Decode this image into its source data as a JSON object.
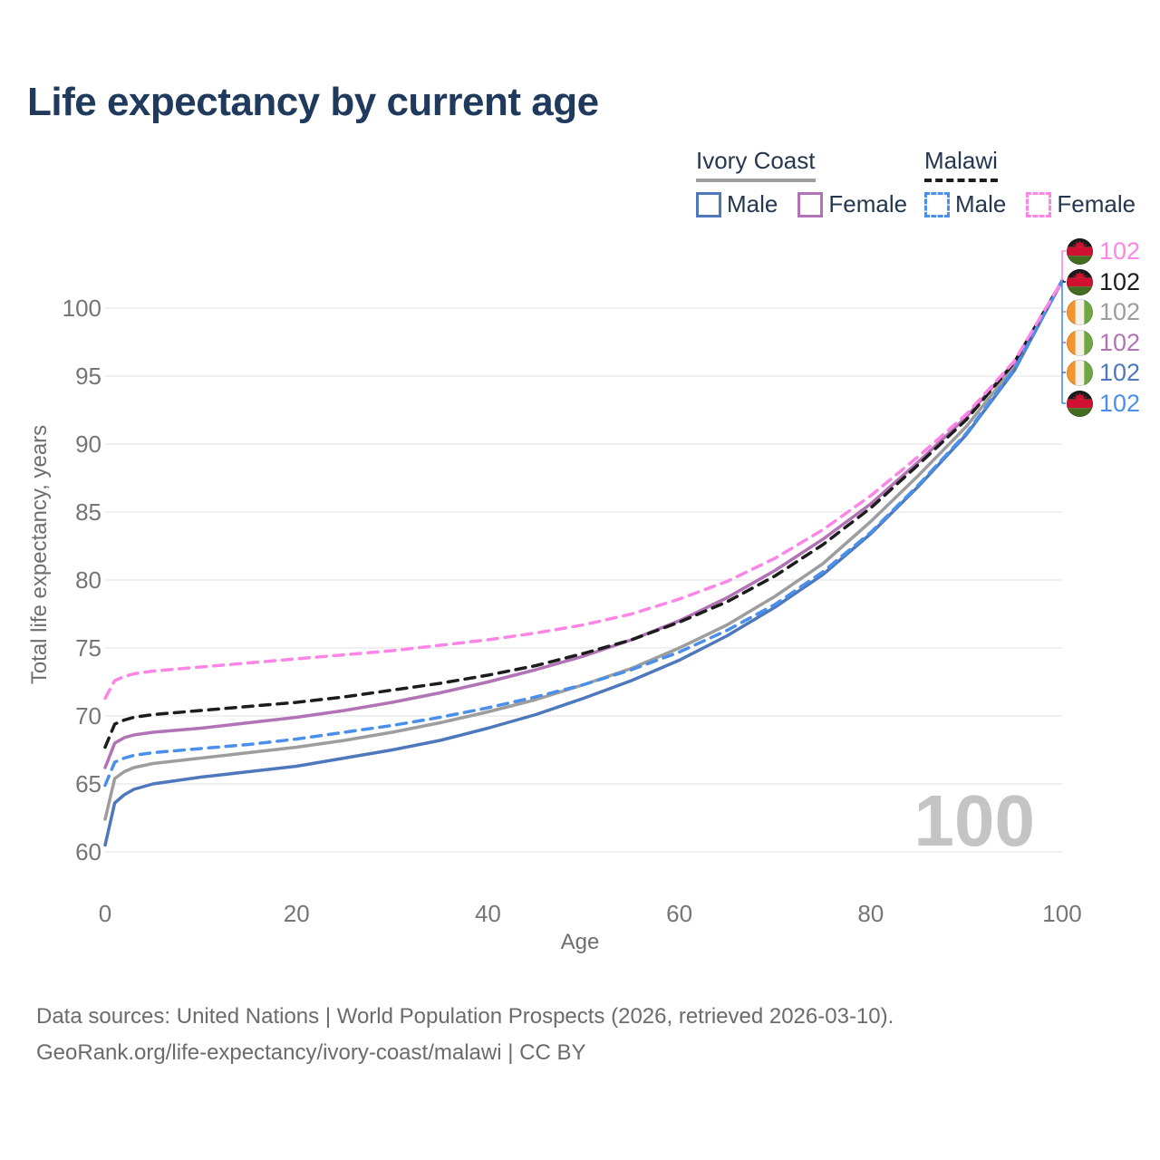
{
  "header": {
    "title": "Life expectancy by current age"
  },
  "legend": {
    "groups": [
      {
        "label": "Ivory Coast",
        "line_style": "solid",
        "underline_color": "#9d9d9d",
        "items": [
          {
            "label": "Male",
            "color": "#4d78bb",
            "dashed": false
          },
          {
            "label": "Female",
            "color": "#b172b6",
            "dashed": false
          }
        ]
      },
      {
        "label": "Malawi",
        "line_style": "dashed",
        "underline_color": "#1c1c1c",
        "items": [
          {
            "label": "Male",
            "color": "#4a8fe9",
            "dashed": true
          },
          {
            "label": "Female",
            "color": "#fc85e5",
            "dashed": true
          }
        ]
      }
    ]
  },
  "chart_data": {
    "type": "line",
    "title": "Life expectancy by current age",
    "xlabel": "Age",
    "ylabel": "Total life expectancy, years",
    "x_ticks": [
      0,
      20,
      40,
      60,
      80,
      100
    ],
    "y_ticks": [
      60,
      65,
      70,
      75,
      80,
      85,
      90,
      95,
      100
    ],
    "xlim": [
      0,
      100
    ],
    "ylim": [
      60,
      102
    ],
    "grid": "horizontal",
    "legend_position": "top-right",
    "watermark": "100",
    "ages": [
      0,
      1,
      2,
      3,
      5,
      10,
      15,
      20,
      25,
      30,
      35,
      40,
      45,
      50,
      55,
      60,
      65,
      70,
      75,
      80,
      85,
      90,
      95,
      100
    ],
    "series": [
      {
        "name": "Ivory Coast — Both sexes",
        "country": "Ivory Coast",
        "sex": "both",
        "color": "#9d9d9d",
        "dashed": false,
        "values": [
          62.4,
          65.4,
          65.9,
          66.2,
          66.5,
          66.9,
          67.3,
          67.7,
          68.2,
          68.8,
          69.5,
          70.3,
          71.2,
          72.3,
          73.5,
          75.0,
          76.7,
          78.8,
          81.2,
          84.3,
          87.7,
          91.3,
          95.7,
          102
        ]
      },
      {
        "name": "Ivory Coast — Female",
        "country": "Ivory Coast",
        "sex": "female",
        "color": "#b172b6",
        "dashed": false,
        "values": [
          66.2,
          68.0,
          68.4,
          68.6,
          68.8,
          69.1,
          69.5,
          69.9,
          70.4,
          71.0,
          71.7,
          72.5,
          73.4,
          74.4,
          75.6,
          77.0,
          78.7,
          80.7,
          83.0,
          85.6,
          88.7,
          92.0,
          96.0,
          102
        ]
      },
      {
        "name": "Ivory Coast — Male",
        "country": "Ivory Coast",
        "sex": "male",
        "color": "#4d78bb",
        "dashed": false,
        "values": [
          60.5,
          63.6,
          64.2,
          64.6,
          65.0,
          65.5,
          65.9,
          66.3,
          66.9,
          67.5,
          68.2,
          69.1,
          70.1,
          71.3,
          72.6,
          74.1,
          75.9,
          78.0,
          80.4,
          83.4,
          86.9,
          90.7,
          95.4,
          102
        ]
      },
      {
        "name": "Malawi — Both sexes",
        "country": "Malawi",
        "sex": "both",
        "color": "#1c1c1c",
        "dashed": true,
        "values": [
          67.7,
          69.4,
          69.7,
          69.9,
          70.1,
          70.4,
          70.7,
          71.0,
          71.4,
          71.9,
          72.4,
          73.0,
          73.7,
          74.6,
          75.6,
          76.9,
          78.4,
          80.3,
          82.6,
          85.3,
          88.5,
          91.8,
          96.0,
          102
        ]
      },
      {
        "name": "Malawi — Male",
        "country": "Malawi",
        "sex": "male",
        "color": "#4a8fe9",
        "dashed": true,
        "values": [
          64.9,
          66.6,
          66.9,
          67.1,
          67.3,
          67.6,
          67.9,
          68.3,
          68.8,
          69.3,
          69.9,
          70.6,
          71.4,
          72.3,
          73.4,
          74.7,
          76.3,
          78.2,
          80.6,
          83.5,
          87.0,
          90.8,
          95.5,
          102
        ]
      },
      {
        "name": "Malawi — Female",
        "country": "Malawi",
        "sex": "female",
        "color": "#fc85e5",
        "dashed": true,
        "values": [
          71.3,
          72.6,
          72.9,
          73.1,
          73.3,
          73.6,
          73.9,
          74.2,
          74.5,
          74.8,
          75.2,
          75.6,
          76.1,
          76.7,
          77.5,
          78.6,
          79.9,
          81.6,
          83.7,
          86.2,
          89.1,
          92.2,
          96.1,
          102
        ]
      }
    ],
    "end_labels": [
      {
        "series": "Malawi — Female",
        "flag": "malawi",
        "value": "102",
        "color": "#fc85e5"
      },
      {
        "series": "Malawi — Both sexes",
        "flag": "malawi",
        "value": "102",
        "color": "#1c1c1c"
      },
      {
        "series": "Ivory Coast — Both sexes",
        "flag": "ivory-coast",
        "value": "102",
        "color": "#9d9d9d"
      },
      {
        "series": "Ivory Coast — Female",
        "flag": "ivory-coast",
        "value": "102",
        "color": "#b172b6"
      },
      {
        "series": "Ivory Coast — Male",
        "flag": "ivory-coast",
        "value": "102",
        "color": "#4d78bb"
      },
      {
        "series": "Malawi — Male",
        "flag": "malawi",
        "value": "102",
        "color": "#4a8fe9"
      }
    ]
  },
  "colors": {
    "title": "#1f3a5c",
    "legend_text": "#25364e",
    "gridline": "#ececec",
    "tick_label": "#757575",
    "axis_title": "#6e6e6e",
    "footer_text": "#6b6b6b",
    "watermark": "#c4c4c4"
  },
  "footer": {
    "line1": "Data sources: United Nations | World Population Prospects (2026, retrieved 2026-03-10).",
    "line2": "GeoRank.org/life-expectancy/ivory-coast/malawi | CC BY"
  }
}
